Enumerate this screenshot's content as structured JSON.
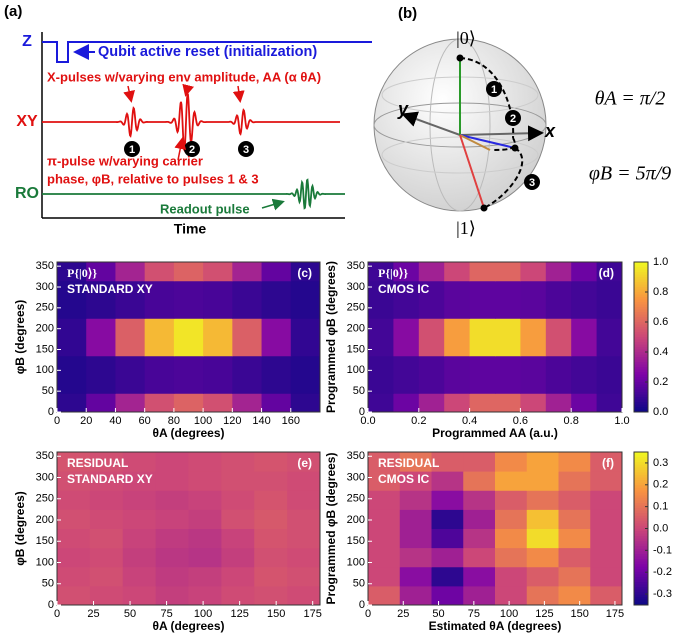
{
  "panel_a": {
    "label": "(a)",
    "z_label": "Z",
    "reset_note": "Qubit active reset (initialization)",
    "xpulse_note": "X-pulses w/varying env amplitude, AA (α θA)",
    "xy_label": "XY",
    "pulse_numbers": [
      "1",
      "2",
      "3"
    ],
    "pi_note_lines": [
      "π-pulse w/varying carrier",
      "phase, φB, relative to pulses 1 & 3"
    ],
    "ro_label": "RO",
    "readout_note": "Readout pulse",
    "x_label": "Time"
  },
  "panel_b": {
    "label": "(b)",
    "ket0": "|0⟩",
    "ket1": "|1⟩",
    "x_axis": "x",
    "y_axis": "y",
    "theta": "θA = π/2",
    "phi": "φB = 5π/9",
    "markers": [
      "1",
      "2",
      "3"
    ]
  },
  "chart_data": [
    {
      "type": "heatmap",
      "panel": "(c)",
      "annotations": [
        "P{|0⟩}",
        "STANDARD XY"
      ],
      "x_label": "θA (degrees)",
      "y_label": "φB (degrees)",
      "x": [
        10,
        30,
        50,
        70,
        90,
        110,
        130,
        150,
        170
      ],
      "y": [
        22.5,
        67.5,
        112.5,
        157.5,
        202.5,
        247.5,
        292.5,
        337.5
      ],
      "values": [
        [
          0.07,
          0.19,
          0.37,
          0.53,
          0.59,
          0.53,
          0.37,
          0.19,
          0.07
        ],
        [
          0.05,
          0.07,
          0.1,
          0.13,
          0.14,
          0.13,
          0.1,
          0.07,
          0.05
        ],
        [
          0.05,
          0.07,
          0.1,
          0.13,
          0.14,
          0.13,
          0.1,
          0.07,
          0.05
        ],
        [
          0.08,
          0.28,
          0.58,
          0.84,
          0.95,
          0.84,
          0.58,
          0.28,
          0.08
        ],
        [
          0.08,
          0.28,
          0.58,
          0.84,
          0.95,
          0.84,
          0.58,
          0.28,
          0.08
        ],
        [
          0.05,
          0.07,
          0.1,
          0.13,
          0.14,
          0.13,
          0.1,
          0.07,
          0.05
        ],
        [
          0.05,
          0.07,
          0.1,
          0.13,
          0.14,
          0.13,
          0.1,
          0.07,
          0.05
        ],
        [
          0.07,
          0.19,
          0.37,
          0.53,
          0.59,
          0.53,
          0.37,
          0.19,
          0.07
        ]
      ],
      "xlim": [
        0,
        180
      ],
      "xticks": [
        0,
        20,
        40,
        60,
        80,
        100,
        120,
        140,
        160
      ],
      "ylim": [
        0,
        360
      ],
      "yticks": [
        0,
        50,
        100,
        150,
        200,
        250,
        300,
        350
      ],
      "zlim": [
        0,
        1
      ],
      "colormap": "plasma"
    },
    {
      "type": "heatmap",
      "panel": "(d)",
      "annotations": [
        "P{|0⟩}",
        "CMOS IC"
      ],
      "x_label": "Programmed AA (a.u.)",
      "y_label": "Programmed φB (degrees)",
      "x": [
        0.05,
        0.15,
        0.25,
        0.35,
        0.45,
        0.55,
        0.65,
        0.75,
        0.85,
        0.95
      ],
      "y": [
        22.5,
        67.5,
        112.5,
        157.5,
        202.5,
        247.5,
        292.5,
        337.5
      ],
      "values": [
        [
          0.11,
          0.21,
          0.36,
          0.5,
          0.6,
          0.6,
          0.5,
          0.36,
          0.21,
          0.11
        ],
        [
          0.1,
          0.12,
          0.14,
          0.17,
          0.18,
          0.18,
          0.17,
          0.14,
          0.12,
          0.1
        ],
        [
          0.1,
          0.12,
          0.14,
          0.17,
          0.18,
          0.18,
          0.17,
          0.14,
          0.12,
          0.1
        ],
        [
          0.12,
          0.28,
          0.53,
          0.77,
          0.93,
          0.93,
          0.77,
          0.53,
          0.28,
          0.12
        ],
        [
          0.12,
          0.28,
          0.53,
          0.77,
          0.93,
          0.93,
          0.77,
          0.53,
          0.28,
          0.12
        ],
        [
          0.1,
          0.12,
          0.14,
          0.17,
          0.18,
          0.18,
          0.17,
          0.14,
          0.12,
          0.1
        ],
        [
          0.1,
          0.12,
          0.14,
          0.17,
          0.18,
          0.18,
          0.17,
          0.14,
          0.12,
          0.1
        ],
        [
          0.11,
          0.21,
          0.36,
          0.5,
          0.6,
          0.6,
          0.5,
          0.36,
          0.21,
          0.11
        ]
      ],
      "xlim": [
        0,
        1
      ],
      "xticks": [
        {
          "value": 0,
          "label": "0.0"
        },
        0.2,
        0.4,
        0.6,
        0.8,
        {
          "value": 1,
          "label": "1.0"
        }
      ],
      "ylim": [
        0,
        360
      ],
      "yticks": [
        0,
        50,
        100,
        150,
        200,
        250,
        300,
        350
      ],
      "zlim": [
        0,
        1
      ],
      "zticks": [
        {
          "value": 0,
          "label": "0.0"
        },
        0.2,
        0.4,
        0.6,
        0.8,
        {
          "value": 1,
          "label": "1.0"
        }
      ],
      "colormap": "plasma"
    },
    {
      "type": "heatmap",
      "panel": "(e)",
      "annotations": [
        "RESIDUAL",
        "STANDARD XY"
      ],
      "x_label": "θA (degrees)",
      "y_label": "φB (degrees)",
      "x": [
        11.25,
        33.75,
        56.25,
        78.75,
        101.25,
        123.75,
        146.25,
        168.75
      ],
      "y": [
        22.5,
        67.5,
        112.5,
        157.5,
        202.5,
        247.5,
        292.5,
        337.5
      ],
      "values": [
        [
          0.02,
          0.01,
          0.0,
          -0.02,
          -0.01,
          0.01,
          0.02,
          0.01
        ],
        [
          0.01,
          0.02,
          -0.01,
          -0.03,
          -0.02,
          0.0,
          0.03,
          0.02
        ],
        [
          0.0,
          0.01,
          -0.02,
          -0.04,
          -0.05,
          -0.02,
          0.02,
          0.01
        ],
        [
          0.01,
          0.02,
          -0.01,
          -0.03,
          -0.04,
          -0.01,
          0.03,
          0.02
        ],
        [
          0.02,
          0.01,
          0.0,
          -0.01,
          -0.02,
          0.02,
          0.04,
          0.02
        ],
        [
          0.01,
          0.0,
          -0.01,
          -0.02,
          -0.01,
          0.01,
          0.03,
          0.01
        ],
        [
          0.02,
          0.01,
          0.0,
          0.0,
          0.01,
          0.02,
          0.02,
          0.01
        ],
        [
          0.03,
          0.02,
          0.01,
          0.0,
          0.01,
          0.02,
          0.03,
          0.02
        ]
      ],
      "xlim": [
        0,
        180
      ],
      "xticks": [
        0,
        25,
        50,
        75,
        100,
        125,
        150,
        175
      ],
      "ylim": [
        0,
        360
      ],
      "yticks": [
        0,
        50,
        100,
        150,
        200,
        250,
        300,
        350
      ],
      "zlim": [
        -0.35,
        0.35
      ],
      "colormap": "plasma"
    },
    {
      "type": "heatmap",
      "panel": "(f)",
      "annotations": [
        "RESIDUAL",
        "CMOS IC"
      ],
      "x_label": "Estimated θA (degrees)",
      "y_label": "Programmed φB (degrees)",
      "x": [
        11.25,
        33.75,
        56.25,
        78.75,
        101.25,
        123.75,
        146.25,
        168.75
      ],
      "y": [
        22.5,
        67.5,
        112.5,
        157.5,
        202.5,
        247.5,
        292.5,
        337.5
      ],
      "values": [
        [
          0.05,
          -0.1,
          -0.2,
          -0.1,
          0.0,
          0.1,
          0.15,
          0.05
        ],
        [
          0.0,
          -0.15,
          -0.3,
          -0.15,
          0.0,
          0.05,
          0.1,
          0.0
        ],
        [
          0.0,
          -0.05,
          -0.1,
          0.0,
          0.1,
          0.15,
          0.05,
          0.0
        ],
        [
          0.0,
          -0.1,
          -0.25,
          -0.05,
          0.15,
          0.3,
          0.15,
          0.0
        ],
        [
          0.0,
          -0.1,
          -0.3,
          -0.1,
          0.1,
          0.25,
          0.1,
          0.0
        ],
        [
          0.0,
          -0.05,
          -0.15,
          -0.05,
          0.05,
          0.1,
          0.05,
          0.0
        ],
        [
          0.05,
          0.0,
          -0.05,
          0.1,
          0.2,
          0.2,
          0.1,
          0.05
        ],
        [
          0.05,
          0.1,
          0.05,
          0.05,
          0.15,
          0.2,
          0.15,
          0.05
        ]
      ],
      "xlim": [
        0,
        180
      ],
      "xticks": [
        0,
        25,
        50,
        75,
        100,
        125,
        150,
        175
      ],
      "ylim": [
        0,
        360
      ],
      "yticks": [
        0,
        50,
        100,
        150,
        200,
        250,
        300,
        350
      ],
      "zlim": [
        -0.35,
        0.35
      ],
      "zticks": [
        -0.3,
        -0.2,
        -0.1,
        {
          "value": 0,
          "label": "0.0"
        },
        0.1,
        0.2,
        0.3
      ],
      "colormap": "plasma"
    }
  ]
}
